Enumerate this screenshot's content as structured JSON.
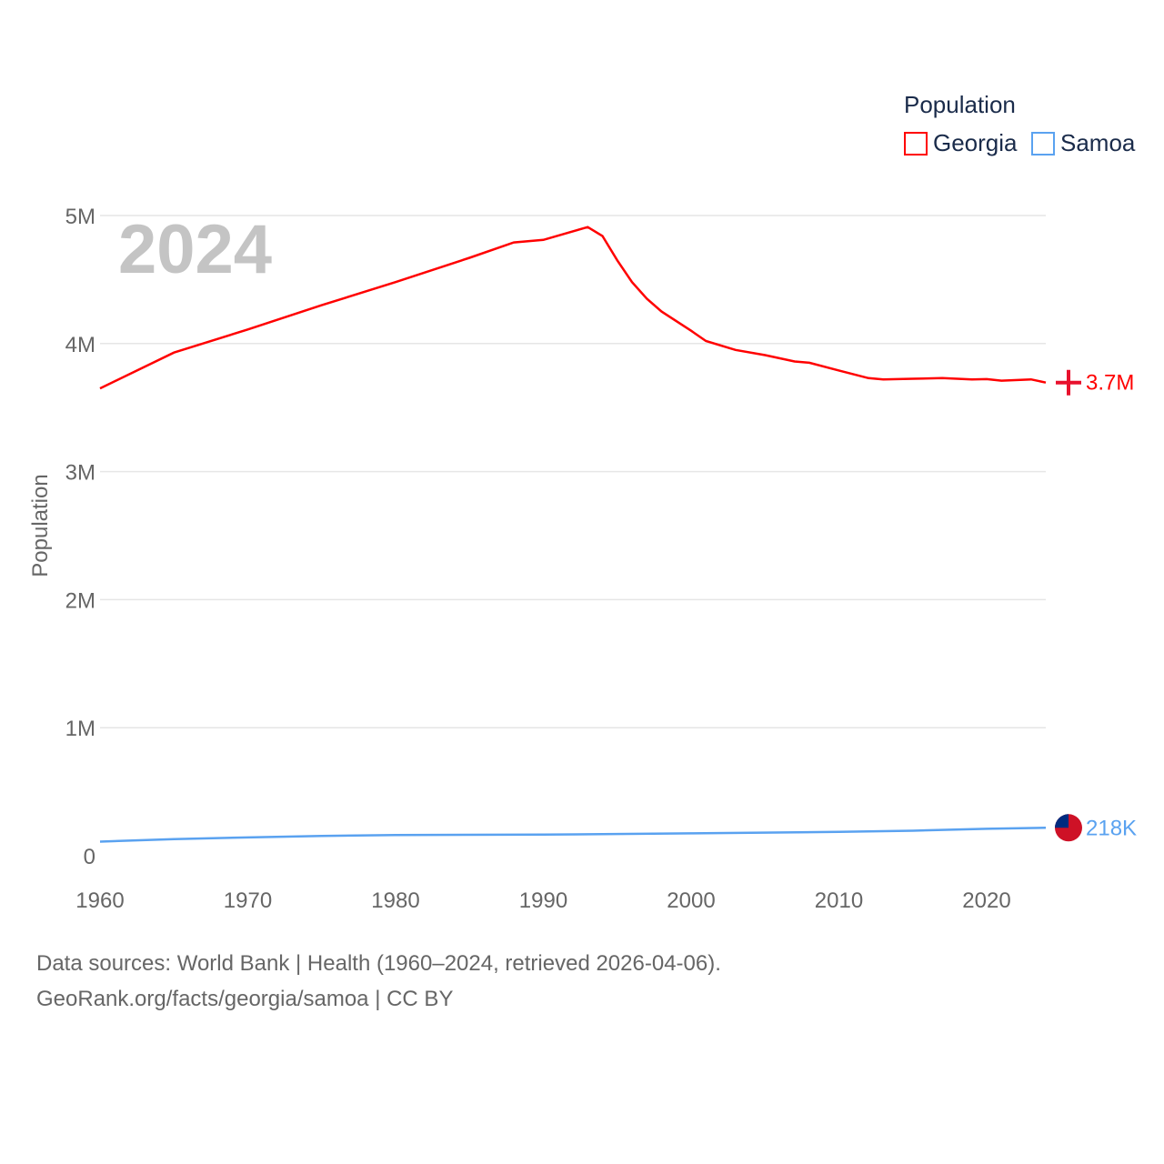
{
  "chart_data": {
    "type": "line",
    "year_label": "2024",
    "ylabel": "Population",
    "legend_title": "Population",
    "xlim": [
      1960,
      2024
    ],
    "ylim": [
      0,
      5000000
    ],
    "x_ticks": [
      1960,
      1970,
      1980,
      1990,
      2000,
      2010,
      2020
    ],
    "y_ticks": [
      {
        "v": 0,
        "label": "0"
      },
      {
        "v": 1000000,
        "label": "1M"
      },
      {
        "v": 2000000,
        "label": "2M"
      },
      {
        "v": 3000000,
        "label": "3M"
      },
      {
        "v": 4000000,
        "label": "4M"
      },
      {
        "v": 5000000,
        "label": "5M"
      }
    ],
    "series": [
      {
        "name": "Georgia",
        "color": "#ff0000",
        "end_label": "3.7M",
        "flag": "georgia-flag",
        "points": [
          [
            1960,
            3650000
          ],
          [
            1965,
            3930000
          ],
          [
            1970,
            4110000
          ],
          [
            1975,
            4300000
          ],
          [
            1980,
            4480000
          ],
          [
            1985,
            4670000
          ],
          [
            1988,
            4790000
          ],
          [
            1990,
            4810000
          ],
          [
            1993,
            4910000
          ],
          [
            1994,
            4840000
          ],
          [
            1995,
            4650000
          ],
          [
            1996,
            4480000
          ],
          [
            1997,
            4350000
          ],
          [
            1998,
            4250000
          ],
          [
            2000,
            4100000
          ],
          [
            2001,
            4020000
          ],
          [
            2003,
            3950000
          ],
          [
            2005,
            3910000
          ],
          [
            2007,
            3860000
          ],
          [
            2008,
            3850000
          ],
          [
            2010,
            3790000
          ],
          [
            2012,
            3730000
          ],
          [
            2013,
            3720000
          ],
          [
            2015,
            3725000
          ],
          [
            2017,
            3730000
          ],
          [
            2019,
            3720000
          ],
          [
            2020,
            3722000
          ],
          [
            2021,
            3710000
          ],
          [
            2023,
            3720000
          ],
          [
            2024,
            3695000
          ]
        ]
      },
      {
        "name": "Samoa",
        "color": "#5aa2f0",
        "end_label": "218K",
        "flag": "samoa-flag",
        "points": [
          [
            1960,
            110000
          ],
          [
            1965,
            130000
          ],
          [
            1970,
            143000
          ],
          [
            1975,
            155000
          ],
          [
            1980,
            162000
          ],
          [
            1990,
            165000
          ],
          [
            2000,
            175000
          ],
          [
            2010,
            186000
          ],
          [
            2015,
            195000
          ],
          [
            2020,
            210000
          ],
          [
            2024,
            218000
          ]
        ]
      }
    ]
  },
  "footer": {
    "line1": "Data sources: World Bank | Health (1960–2024, retrieved 2026-04-06).",
    "line2": "GeoRank.org/facts/georgia/samoa | CC BY"
  }
}
